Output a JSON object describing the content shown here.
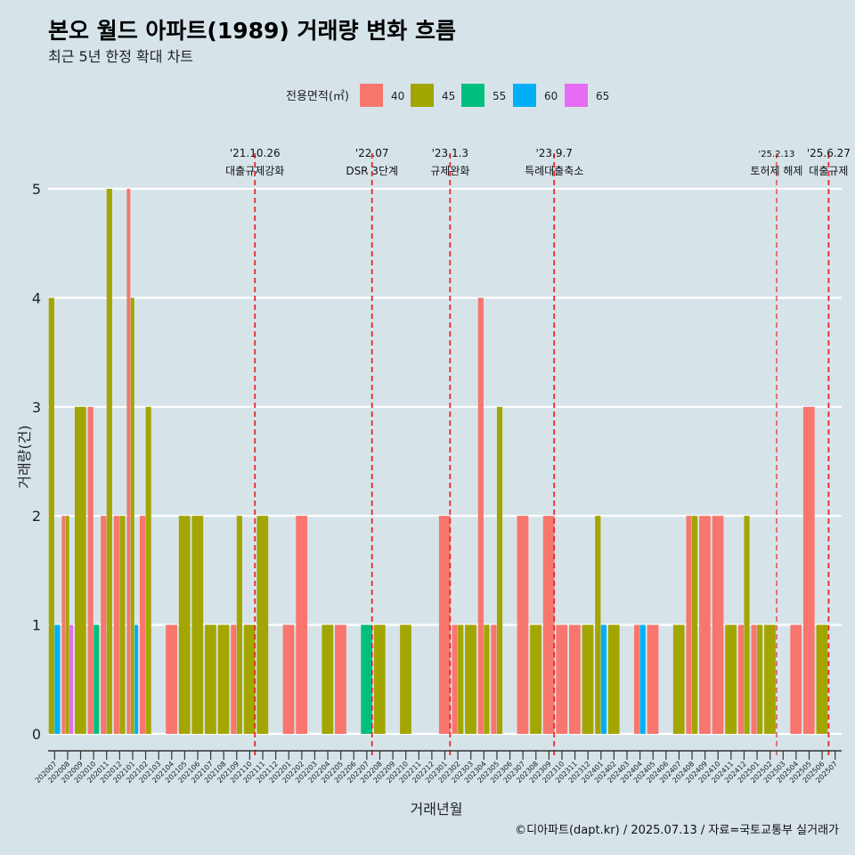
{
  "chart_data": {
    "type": "bar",
    "title": "본오 월드 아파트(1989) 거래량 변화 흐름",
    "subtitle": "최근 5년 한정 확대 차트",
    "xlabel": "거래년월",
    "ylabel": "거래량(건)",
    "ylim": [
      0,
      5
    ],
    "yticks": [
      0,
      1,
      2,
      3,
      4,
      5
    ],
    "grid": "horizontal",
    "legend_position": "top",
    "legend_title": "전용면적(㎡)",
    "categories": [
      "202007",
      "202008",
      "202009",
      "202010",
      "202011",
      "202012",
      "202101",
      "202102",
      "202103",
      "202104",
      "202105",
      "202106",
      "202107",
      "202108",
      "202109",
      "202110",
      "202111",
      "202112",
      "202201",
      "202202",
      "202203",
      "202204",
      "202205",
      "202206",
      "202207",
      "202208",
      "202209",
      "202210",
      "202211",
      "202212",
      "202301",
      "202302",
      "202303",
      "202304",
      "202305",
      "202306",
      "202307",
      "202308",
      "202309",
      "202310",
      "202311",
      "202312",
      "202401",
      "202402",
      "202403",
      "202404",
      "202405",
      "202406",
      "202407",
      "202408",
      "202409",
      "202410",
      "202411",
      "202412",
      "202501",
      "202502",
      "202503",
      "202504",
      "202505",
      "202506",
      "202507"
    ],
    "series": [
      {
        "name": "40",
        "color": "#f8766d",
        "values": [
          0,
          2,
          0,
          3,
          2,
          2,
          5,
          2,
          0,
          1,
          0,
          0,
          0,
          0,
          1,
          0,
          0,
          0,
          1,
          2,
          0,
          0,
          1,
          0,
          0,
          0,
          0,
          0,
          0,
          0,
          2,
          1,
          0,
          4,
          1,
          0,
          2,
          0,
          2,
          1,
          1,
          0,
          0,
          0,
          0,
          1,
          1,
          0,
          0,
          2,
          2,
          2,
          0,
          1,
          1,
          0,
          0,
          1,
          3,
          0,
          0
        ]
      },
      {
        "name": "45",
        "color": "#a3a500",
        "values": [
          4,
          2,
          3,
          0,
          5,
          2,
          4,
          3,
          0,
          0,
          2,
          2,
          1,
          1,
          2,
          1,
          2,
          0,
          0,
          0,
          0,
          1,
          0,
          0,
          0,
          1,
          0,
          1,
          0,
          0,
          0,
          1,
          1,
          1,
          3,
          0,
          0,
          1,
          0,
          0,
          0,
          1,
          2,
          1,
          0,
          0,
          0,
          0,
          1,
          2,
          0,
          0,
          1,
          2,
          1,
          1,
          0,
          0,
          0,
          1,
          0
        ]
      },
      {
        "name": "55",
        "color": "#00bf7d",
        "values": [
          0,
          0,
          0,
          1,
          0,
          0,
          0,
          0,
          0,
          0,
          0,
          0,
          0,
          0,
          0,
          0,
          0,
          0,
          0,
          0,
          0,
          0,
          0,
          0,
          1,
          0,
          0,
          0,
          0,
          0,
          0,
          0,
          0,
          0,
          0,
          0,
          0,
          0,
          0,
          0,
          0,
          0,
          0,
          0,
          0,
          0,
          0,
          0,
          0,
          0,
          0,
          0,
          0,
          0,
          0,
          0,
          0,
          0,
          0,
          0,
          0
        ]
      },
      {
        "name": "60",
        "color": "#00b0f6",
        "values": [
          1,
          0,
          0,
          0,
          0,
          0,
          1,
          0,
          0,
          0,
          0,
          0,
          0,
          0,
          0,
          0,
          0,
          0,
          0,
          0,
          0,
          0,
          0,
          0,
          0,
          0,
          0,
          0,
          0,
          0,
          0,
          0,
          0,
          0,
          0,
          0,
          0,
          0,
          0,
          0,
          0,
          0,
          1,
          0,
          0,
          1,
          0,
          0,
          0,
          0,
          0,
          0,
          0,
          0,
          0,
          0,
          0,
          0,
          0,
          0,
          0
        ]
      },
      {
        "name": "65",
        "color": "#e76bf3",
        "values": [
          0,
          1,
          0,
          0,
          0,
          0,
          0,
          0,
          0,
          0,
          0,
          0,
          0,
          0,
          0,
          0,
          0,
          0,
          0,
          0,
          0,
          0,
          0,
          0,
          0,
          0,
          0,
          0,
          0,
          0,
          0,
          0,
          0,
          0,
          0,
          0,
          0,
          0,
          0,
          0,
          0,
          0,
          0,
          0,
          0,
          0,
          0,
          0,
          0,
          0,
          0,
          0,
          0,
          0,
          0,
          0,
          0,
          0,
          0,
          0,
          0
        ]
      }
    ],
    "annotations": [
      {
        "x": 15.4,
        "date": "'21.10.26",
        "label": "대출규제강화"
      },
      {
        "x": 24.4,
        "date": "'22.07",
        "label": "DSR 3단계"
      },
      {
        "x": 30.4,
        "date": "'23.1.3",
        "label": "규제완화"
      },
      {
        "x": 38.4,
        "date": "'23.9.7",
        "label": "특례대출축소"
      },
      {
        "x": 55.5,
        "date": "'25.2.13",
        "label": "토허제 해제"
      },
      {
        "x": 59.5,
        "date": "'25.6.27",
        "label": "대출규제"
      }
    ],
    "annotation_color": "#e8262a"
  },
  "caption": "©디아파트(dapt.kr) / 2025.07.13 / 자료=국토교통부 실거래가"
}
